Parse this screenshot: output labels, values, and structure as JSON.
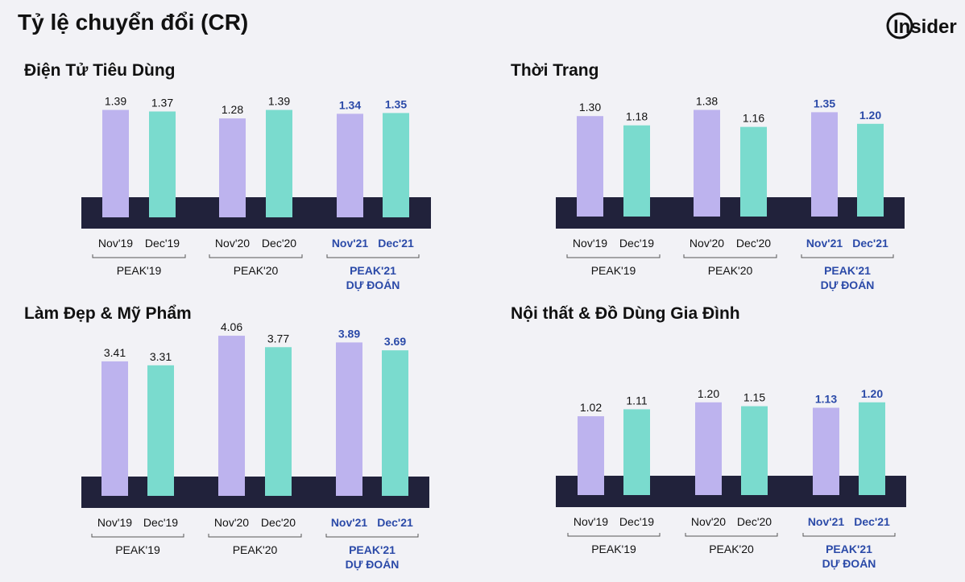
{
  "page": {
    "title": "Tỷ lệ chuyển đổi (CR)",
    "logo_text": "Insider"
  },
  "colors": {
    "nov": "#bdb3ee",
    "dec": "#7adbce",
    "band": "#21223b",
    "forecast_text": "#2b4aa8",
    "text": "#111111"
  },
  "chart_data": [
    {
      "type": "bar",
      "title": "Điện Tử Tiêu Dùng",
      "groups": [
        "PEAK'19",
        "PEAK'20",
        "PEAK'21|DỰ ĐOÁN"
      ],
      "categories": [
        "Nov'19",
        "Dec'19",
        "Nov'20",
        "Dec'20",
        "Nov'21",
        "Dec'21"
      ],
      "values": [
        1.39,
        1.37,
        1.28,
        1.39,
        1.34,
        1.35
      ],
      "forecast": [
        false,
        false,
        false,
        false,
        true,
        true
      ]
    },
    {
      "type": "bar",
      "title": "Thời Trang",
      "groups": [
        "PEAK'19",
        "PEAK'20",
        "PEAK'21|DỰ ĐOÁN"
      ],
      "categories": [
        "Nov'19",
        "Dec'19",
        "Nov'20",
        "Dec'20",
        "Nov'21",
        "Dec'21"
      ],
      "values": [
        1.3,
        1.18,
        1.38,
        1.16,
        1.35,
        1.2
      ],
      "forecast": [
        false,
        false,
        false,
        false,
        true,
        true
      ]
    },
    {
      "type": "bar",
      "title": "Làm Đẹp & Mỹ Phẩm",
      "groups": [
        "PEAK'19",
        "PEAK'20",
        "PEAK'21|DỰ ĐOÁN"
      ],
      "categories": [
        "Nov'19",
        "Dec'19",
        "Nov'20",
        "Dec'20",
        "Nov'21",
        "Dec'21"
      ],
      "values": [
        3.41,
        3.31,
        4.06,
        3.77,
        3.89,
        3.69
      ],
      "forecast": [
        false,
        false,
        false,
        false,
        true,
        true
      ]
    },
    {
      "type": "bar",
      "title": "Nội thất & Đồ Dùng Gia Đình",
      "groups": [
        "PEAK'19",
        "PEAK'20",
        "PEAK'21|DỰ ĐOÁN"
      ],
      "categories": [
        "Nov'19",
        "Dec'19",
        "Nov'20",
        "Dec'20",
        "Nov'21",
        "Dec'21"
      ],
      "values": [
        1.02,
        1.11,
        1.2,
        1.15,
        1.13,
        1.2
      ],
      "forecast": [
        false,
        false,
        false,
        false,
        true,
        true
      ]
    }
  ]
}
